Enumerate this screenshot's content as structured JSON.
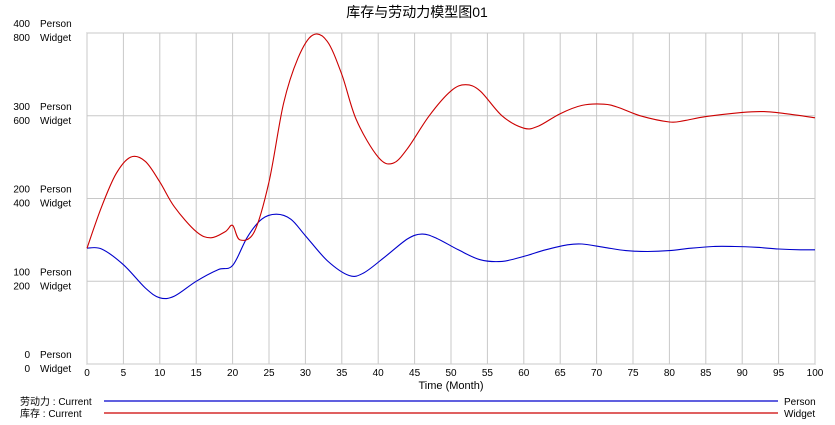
{
  "chart_data": {
    "type": "line",
    "title": "库存与劳动力模型图01",
    "xlabel": "Time (Month)",
    "xlim": [
      0,
      100
    ],
    "x_ticks": [
      "0",
      "5",
      "10",
      "15",
      "20",
      "25",
      "30",
      "35",
      "40",
      "45",
      "50",
      "55",
      "60",
      "65",
      "70",
      "75",
      "80",
      "85",
      "90",
      "95",
      "100"
    ],
    "grid": true,
    "axes": [
      {
        "unit": "Person",
        "ylim": [
          0,
          400
        ],
        "ticks": [
          "0",
          "100",
          "200",
          "300",
          "400"
        ]
      },
      {
        "unit": "Widget",
        "ylim": [
          0,
          800
        ],
        "ticks": [
          "0",
          "200",
          "400",
          "600",
          "800"
        ]
      }
    ],
    "series": [
      {
        "name": "劳动力 : Current",
        "unit": "Person",
        "color": "#0000cc",
        "x": [
          0,
          2,
          5,
          8,
          10,
          12,
          15,
          18,
          20,
          22,
          24,
          26,
          28,
          30,
          33,
          36,
          38,
          41,
          44,
          46,
          48,
          51,
          54,
          57,
          60,
          63,
          66,
          68,
          71,
          74,
          77,
          80,
          83,
          86,
          89,
          92,
          95,
          98,
          100
        ],
        "y": [
          140,
          139,
          120,
          92,
          80,
          82,
          100,
          114,
          119,
          153,
          175,
          181,
          175,
          155,
          125,
          107,
          110,
          130,
          151,
          157,
          152,
          138,
          126,
          124,
          130,
          138,
          144,
          145,
          141,
          137,
          136,
          137,
          140,
          142,
          142,
          141,
          139,
          138,
          138
        ]
      },
      {
        "name": "库存 : Current",
        "unit": "Widget",
        "color": "#cc0000",
        "x": [
          0,
          2,
          4,
          6,
          8,
          10,
          12,
          15,
          17,
          19,
          20,
          21,
          23,
          25,
          27,
          29,
          31,
          33,
          35,
          37,
          40,
          42,
          44,
          47,
          50,
          52,
          54,
          57,
          60,
          62,
          65,
          68,
          71,
          73,
          76,
          80,
          82,
          85,
          90,
          93,
          96,
          100
        ],
        "y": [
          280,
          380,
          460,
          500,
          490,
          440,
          380,
          320,
          305,
          320,
          335,
          300,
          320,
          440,
          630,
          740,
          795,
          780,
          700,
          590,
          500,
          485,
          520,
          600,
          660,
          675,
          660,
          600,
          570,
          575,
          605,
          625,
          628,
          620,
          600,
          585,
          588,
          598,
          608,
          610,
          605,
          595
        ]
      }
    ]
  }
}
